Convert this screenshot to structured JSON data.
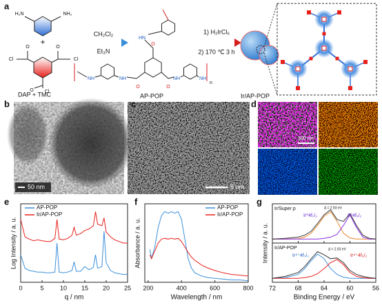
{
  "panel_labels": [
    "a",
    "b",
    "c",
    "d",
    "e",
    "f",
    "g"
  ],
  "scheme": {
    "label_dap_tmc": "DAP + TMC",
    "label_ap_pop": "AP-POP",
    "label_ir": "Ir/AP-POP",
    "cond1": [
      "CH₂Cl₂",
      "Et₃N"
    ],
    "cond2": [
      "1) H₂IrCl₆",
      "2) 170 ℃ 3 h"
    ],
    "atoms": [
      "H₂N",
      "NH₂",
      "Cl",
      "O",
      "O",
      "Cl",
      "O",
      "Cl",
      "HN",
      "NH",
      "NH",
      "NH",
      "NH",
      "O",
      "O",
      "O",
      "n"
    ]
  },
  "images": {
    "b_scale": "50 nm",
    "c_scale": "5 nm",
    "d_scale": "500 nm"
  },
  "chart_data": [
    {
      "type": "line",
      "xlabel": "q / nm",
      "ylabel": "Log Intensity / a. u.",
      "legend": "upper left",
      "x": [
        0,
        1,
        2,
        3,
        4,
        5,
        6,
        7,
        8,
        8.5,
        9,
        10,
        11,
        12,
        12.5,
        13,
        14,
        15,
        16,
        17,
        17.5,
        18,
        19,
        19.5,
        20,
        21,
        22,
        23,
        24,
        25
      ],
      "xlim": [
        0,
        25
      ],
      "xticks": [
        0,
        5,
        10,
        15,
        20,
        25
      ],
      "ylim": [
        0,
        10
      ],
      "series": [
        {
          "name": "AP-POP",
          "color": "#3a8fd9",
          "values": [
            3.5,
            1.8,
            1.5,
            1.4,
            1.3,
            1.3,
            1.2,
            1.2,
            1.3,
            5.0,
            1.3,
            1.2,
            1.3,
            1.5,
            2.6,
            1.4,
            1.4,
            2.0,
            1.6,
            1.9,
            3.5,
            1.8,
            2.0,
            6.5,
            2.5,
            1.5,
            1.2,
            1.1,
            1.0,
            1.0
          ]
        },
        {
          "name": "Ir/AP-POP",
          "color": "#e8201c",
          "values": [
            8.0,
            5.8,
            5.5,
            5.3,
            5.4,
            5.3,
            5.2,
            5.2,
            5.6,
            8.0,
            5.5,
            5.4,
            5.6,
            6.0,
            7.0,
            6.0,
            6.2,
            6.6,
            6.8,
            7.2,
            9.0,
            7.4,
            7.2,
            8.2,
            6.4,
            5.8,
            5.4,
            5.2,
            5.0,
            5.0
          ]
        }
      ]
    },
    {
      "type": "line",
      "xlabel": "Wavelength / nm",
      "ylabel": "Absorbance / a. u.",
      "legend": "upper right",
      "x": [
        210,
        220,
        240,
        260,
        280,
        300,
        320,
        340,
        360,
        380,
        400,
        420,
        440,
        460,
        480,
        520,
        560,
        600,
        650,
        700,
        750,
        800
      ],
      "xlim": [
        180,
        800
      ],
      "xticks": [
        200,
        400,
        600,
        800
      ],
      "ylim": [
        0,
        1
      ],
      "series": [
        {
          "name": "AP-POP",
          "color": "#3a8fd9",
          "values": [
            0.42,
            0.3,
            0.45,
            0.7,
            0.85,
            0.9,
            0.88,
            0.9,
            0.88,
            0.9,
            0.8,
            0.55,
            0.3,
            0.18,
            0.12,
            0.08,
            0.06,
            0.05,
            0.04,
            0.03,
            0.03,
            0.02
          ]
        },
        {
          "name": "Ir/AP-POP",
          "color": "#e8201c",
          "values": [
            0.35,
            0.3,
            0.4,
            0.5,
            0.55,
            0.56,
            0.55,
            0.56,
            0.55,
            0.56,
            0.52,
            0.45,
            0.38,
            0.32,
            0.28,
            0.22,
            0.18,
            0.15,
            0.12,
            0.1,
            0.09,
            0.08
          ]
        }
      ]
    },
    {
      "type": "line",
      "ylabel": "Intensity / a. u.",
      "annotations": [
        "Ir/Super p",
        "Ir⁰4f₇/₂",
        "Δ = 2.93 eV",
        "Ir⁰4f₅/₂"
      ],
      "x": [
        72,
        70,
        68,
        67,
        66,
        65,
        64,
        63,
        62,
        61,
        60,
        59,
        58,
        57,
        56
      ],
      "xlim": [
        72,
        56
      ],
      "ylim": [
        0,
        1
      ],
      "series": [
        {
          "color": "#e8872c",
          "values": [
            0.1,
            0.1,
            0.11,
            0.15,
            0.25,
            0.45,
            0.68,
            0.8,
            0.55,
            0.25,
            0.13,
            0.1,
            0.1,
            0.1,
            0.1
          ]
        },
        {
          "color": "#8a2be2",
          "values": [
            0.1,
            0.1,
            0.1,
            0.1,
            0.1,
            0.1,
            0.12,
            0.15,
            0.22,
            0.45,
            0.72,
            0.4,
            0.15,
            0.1,
            0.1
          ]
        },
        {
          "color": "#333333",
          "values": [
            0.1,
            0.12,
            0.15,
            0.2,
            0.3,
            0.5,
            0.72,
            0.85,
            0.6,
            0.55,
            0.75,
            0.45,
            0.2,
            0.12,
            0.1
          ]
        }
      ]
    },
    {
      "type": "line",
      "xlabel": "Binding Energy / eV",
      "annotations": [
        "Ir/AP-POP",
        "Ir⁴⁺4f₇/₂",
        "Δ = 2.93 eV",
        "Ir⁴⁺4f₅/₂"
      ],
      "x": [
        72,
        70,
        68,
        67,
        66,
        65,
        64,
        63,
        62,
        61,
        60,
        59,
        58,
        57,
        56
      ],
      "xlim": [
        72,
        56
      ],
      "xticks": [
        72,
        68,
        64,
        60,
        56
      ],
      "ylim": [
        0,
        1
      ],
      "series": [
        {
          "color": "#3a8fd9",
          "values": [
            0.1,
            0.12,
            0.2,
            0.35,
            0.55,
            0.72,
            0.6,
            0.35,
            0.2,
            0.13,
            0.1,
            0.1,
            0.1,
            0.1,
            0.1
          ]
        },
        {
          "color": "#e8201c",
          "values": [
            0.1,
            0.1,
            0.1,
            0.12,
            0.15,
            0.22,
            0.35,
            0.5,
            0.58,
            0.45,
            0.25,
            0.15,
            0.12,
            0.1,
            0.1
          ]
        },
        {
          "color": "#333333",
          "values": [
            0.1,
            0.15,
            0.25,
            0.4,
            0.6,
            0.78,
            0.7,
            0.6,
            0.62,
            0.5,
            0.3,
            0.2,
            0.15,
            0.12,
            0.1
          ]
        }
      ]
    }
  ]
}
